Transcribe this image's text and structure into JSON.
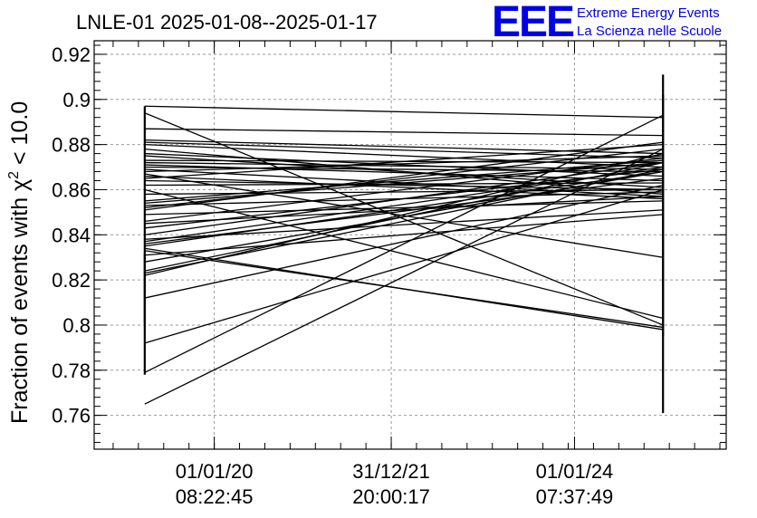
{
  "chart_data": {
    "type": "line",
    "title": "LNLE-01 2025-01-08--2025-01-17",
    "ylabel": "Fraction of events with χ² < 10.0",
    "ylabel_parts": {
      "before": "Fraction of events with χ",
      "sup": "2",
      "after": " < 10.0"
    },
    "xlabel": "",
    "ylim": [
      0.745,
      0.926
    ],
    "xlim": [
      0,
      1
    ],
    "grid": true,
    "ytick_labels": [
      "0.76",
      "0.78",
      "0.8",
      "0.82",
      "0.84",
      "0.86",
      "0.88",
      "0.9",
      "0.92"
    ],
    "yticks": [
      0.76,
      0.78,
      0.8,
      0.82,
      0.84,
      0.86,
      0.88,
      0.9,
      0.92
    ],
    "x_ticks": [
      {
        "date": "01/01/20",
        "time": "08:22:45",
        "x": 0.19
      },
      {
        "date": "31/12/21",
        "time": "20:00:17",
        "x": 0.47
      },
      {
        "date": "01/01/24",
        "time": "07:37:49",
        "x": 0.76
      }
    ],
    "x_start": 0.08,
    "x_end": 0.9,
    "segments": [
      [
        0.897,
        0.892
      ],
      [
        0.894,
        0.8
      ],
      [
        0.887,
        0.884
      ],
      [
        0.882,
        0.876
      ],
      [
        0.881,
        0.874
      ],
      [
        0.88,
        0.87
      ],
      [
        0.878,
        0.858
      ],
      [
        0.876,
        0.866
      ],
      [
        0.875,
        0.861
      ],
      [
        0.873,
        0.872
      ],
      [
        0.872,
        0.869
      ],
      [
        0.871,
        0.864
      ],
      [
        0.87,
        0.868
      ],
      [
        0.869,
        0.857
      ],
      [
        0.868,
        0.875
      ],
      [
        0.867,
        0.83
      ],
      [
        0.866,
        0.856
      ],
      [
        0.865,
        0.88
      ],
      [
        0.864,
        0.86
      ],
      [
        0.862,
        0.863
      ],
      [
        0.86,
        0.803
      ],
      [
        0.858,
        0.86
      ],
      [
        0.855,
        0.873
      ],
      [
        0.853,
        0.859
      ],
      [
        0.852,
        0.878
      ],
      [
        0.851,
        0.881
      ],
      [
        0.849,
        0.855
      ],
      [
        0.846,
        0.874
      ],
      [
        0.845,
        0.857
      ],
      [
        0.843,
        0.869
      ],
      [
        0.84,
        0.872
      ],
      [
        0.838,
        0.851
      ],
      [
        0.837,
        0.87
      ],
      [
        0.836,
        0.865
      ],
      [
        0.835,
        0.868
      ],
      [
        0.834,
        0.798
      ],
      [
        0.833,
        0.799
      ],
      [
        0.831,
        0.849
      ],
      [
        0.828,
        0.868
      ],
      [
        0.824,
        0.872
      ],
      [
        0.823,
        0.869
      ],
      [
        0.822,
        0.876
      ],
      [
        0.792,
        0.86
      ],
      [
        0.779,
        0.893
      ],
      [
        0.765,
        0.878
      ],
      [
        0.812,
        0.862
      ],
      [
        0.854,
        0.872
      ]
    ],
    "error_bars": [
      {
        "x": 0.08,
        "low": 0.778,
        "high": 0.897
      },
      {
        "x": 0.08,
        "low": 0.801,
        "high": 0.832
      },
      {
        "x": 0.9,
        "low": 0.761,
        "high": 0.911
      },
      {
        "x": 0.9,
        "low": 0.795,
        "high": 0.902
      }
    ]
  },
  "logo": {
    "mark": "EEE",
    "line1": "Extreme Energy Events",
    "line2": "La Scienza nelle Scuole",
    "color": "#0000e6"
  }
}
